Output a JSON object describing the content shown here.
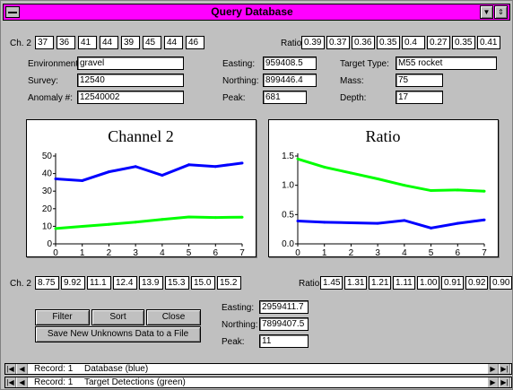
{
  "window": {
    "title": "Query Database"
  },
  "top": {
    "ch2_label": "Ch. 2",
    "ch2_values": [
      "37",
      "36",
      "41",
      "44",
      "39",
      "45",
      "44",
      "46"
    ],
    "ratio_label": "Ratio",
    "ratio_values": [
      "0.39",
      "0.37",
      "0.36",
      "0.35",
      "0.4",
      "0.27",
      "0.35",
      "0.41"
    ],
    "environment_label": "Environment:",
    "environment_value": "gravel",
    "survey_label": "Survey:",
    "survey_value": "12540",
    "anomaly_label": "Anomaly #:",
    "anomaly_value": "12540002",
    "easting_label": "Easting:",
    "easting_value": "959408.5",
    "northing_label": "Northing:",
    "northing_value": "899446.4",
    "peak_label": "Peak:",
    "peak_value": "681",
    "target_type_label": "Target Type:",
    "target_type_value": "M55 rocket",
    "mass_label": "Mass:",
    "mass_value": "75",
    "depth_label": "Depth:",
    "depth_value": "17"
  },
  "chart_data": [
    {
      "type": "line",
      "title": "Channel 2",
      "x": [
        0,
        1,
        2,
        3,
        4,
        5,
        6,
        7
      ],
      "xlabel": "",
      "ylabel": "",
      "ylim": [
        0,
        50
      ],
      "yticks": [
        "0",
        "10",
        "20",
        "30",
        "40",
        "50"
      ],
      "xticks": [
        "0",
        "1",
        "2",
        "3",
        "4",
        "5",
        "6",
        "7"
      ],
      "grid": false,
      "series": [
        {
          "color": "#0000ff",
          "values": [
            37,
            36,
            41,
            44,
            39,
            45,
            44,
            46
          ]
        },
        {
          "color": "#00ff00",
          "values": [
            8.75,
            9.92,
            11.1,
            12.4,
            13.9,
            15.3,
            15.0,
            15.2
          ]
        }
      ]
    },
    {
      "type": "line",
      "title": "Ratio",
      "x": [
        0,
        1,
        2,
        3,
        4,
        5,
        6,
        7
      ],
      "xlabel": "",
      "ylabel": "",
      "ylim": [
        0,
        1.5
      ],
      "yticks": [
        "0.0",
        "0.5",
        "1.0",
        "1.5"
      ],
      "xticks": [
        "0",
        "1",
        "2",
        "3",
        "4",
        "5",
        "6",
        "7"
      ],
      "grid": false,
      "series": [
        {
          "color": "#0000ff",
          "values": [
            0.39,
            0.37,
            0.36,
            0.35,
            0.4,
            0.27,
            0.35,
            0.41
          ]
        },
        {
          "color": "#00ff00",
          "values": [
            1.45,
            1.31,
            1.21,
            1.11,
            1.0,
            0.91,
            0.92,
            0.9
          ]
        }
      ]
    }
  ],
  "bottom": {
    "ch2_label": "Ch. 2",
    "ch2_values": [
      "8.75",
      "9.92",
      "11.1",
      "12.4",
      "13.9",
      "15.3",
      "15.0",
      "15.2"
    ],
    "ratio_label": "Ratio",
    "ratio_values": [
      "1.45",
      "1.31",
      "1.21",
      "1.11",
      "1.00",
      "0.91",
      "0.92",
      "0.90"
    ],
    "easting_label": "Easting:",
    "easting_value": "2959411.7",
    "northing_label": "Northing:",
    "northing_value": "7899407.5",
    "peak_label": "Peak:",
    "peak_value": "11"
  },
  "buttons": {
    "filter": "Filter",
    "sort": "Sort",
    "close": "Close",
    "save": "Save New Unknowns Data to a File"
  },
  "records": [
    {
      "record_label": "Record: 1",
      "caption": "Database   (blue)"
    },
    {
      "record_label": "Record: 1",
      "caption": "Target Detections   (green)"
    }
  ]
}
